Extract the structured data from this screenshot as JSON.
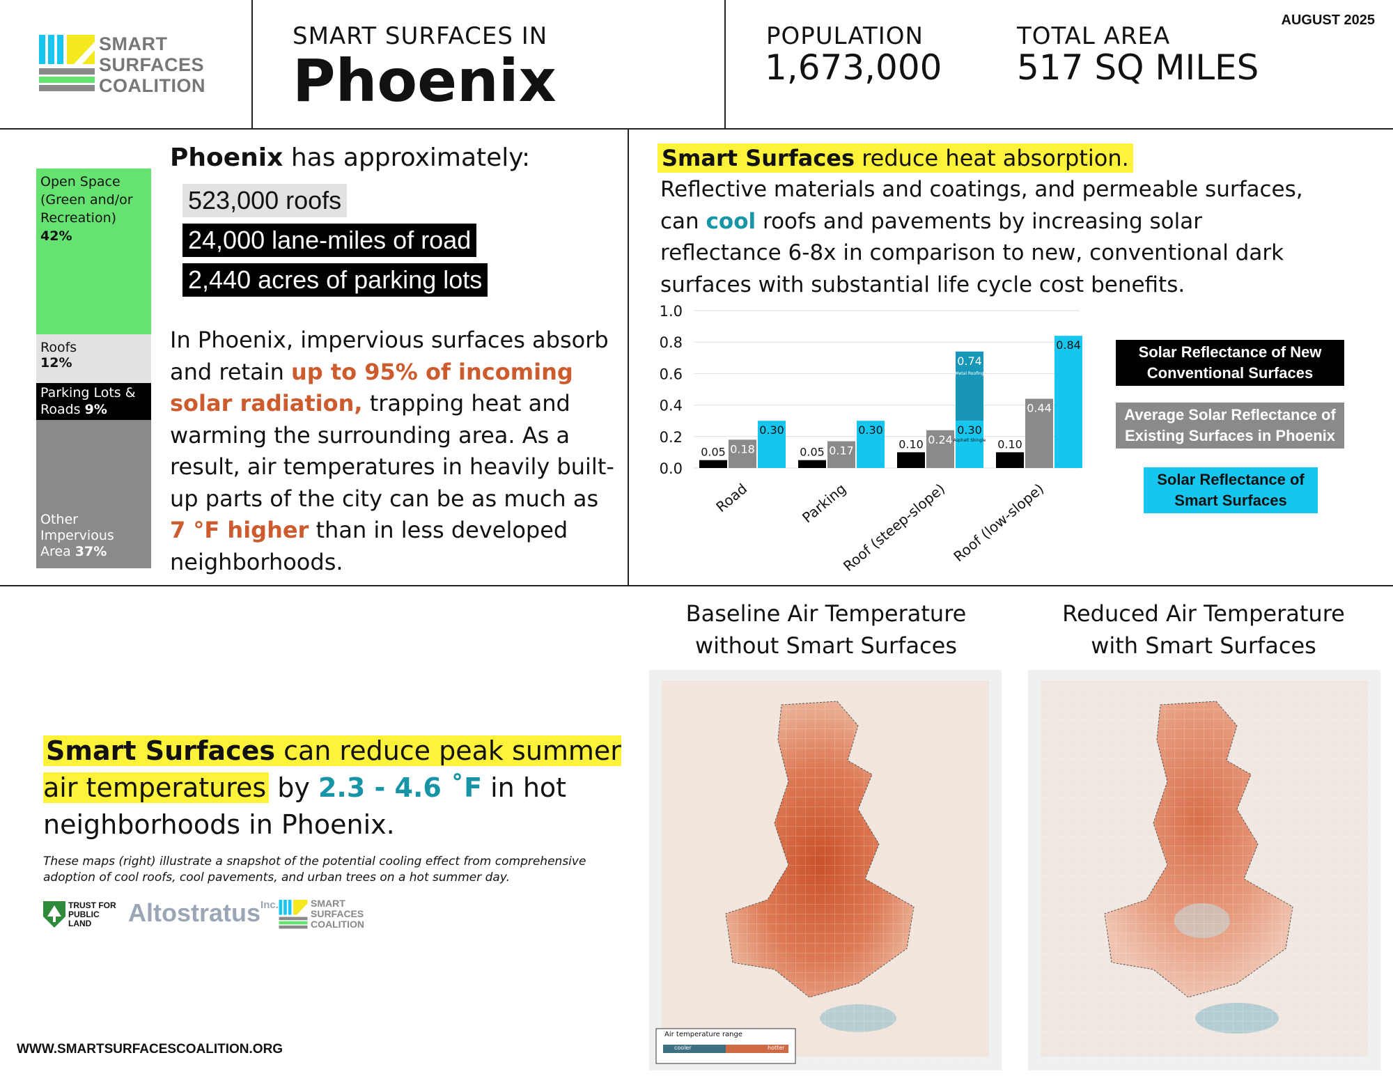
{
  "header": {
    "logo_lines": [
      "SMART",
      "SURFACES",
      "COALITION"
    ],
    "subtitle": "SMART SURFACES IN",
    "city": "Phoenix",
    "population_label": "POPULATION",
    "population_value": "1,673,000",
    "area_label": "TOTAL AREA",
    "area_value": "517 SQ MILES",
    "date": "AUGUST 2025"
  },
  "land_use": {
    "segments": [
      {
        "label": "Open Space (Green and/or Recreation)",
        "pct": "42%",
        "value": 42,
        "color": "#66e270"
      },
      {
        "label": "Roofs",
        "pct": "12%",
        "value": 12,
        "color": "#e2e2e2"
      },
      {
        "label": "Parking Lots & Roads",
        "pct": "9%",
        "value": 9,
        "color": "#000000"
      },
      {
        "label": "Other Impervious Area",
        "pct": "37%",
        "value": 37,
        "color": "#8a8a8a"
      }
    ]
  },
  "approx": {
    "city": "Phoenix",
    "lead": "has approximately:",
    "items": [
      "523,000 roofs",
      "24,000 lane-miles of road",
      "2,440 acres of parking lots"
    ]
  },
  "impervious_text": {
    "p1": "In Phoenix, impervious surfaces absorb and retain ",
    "h1": "up to 95% of incoming solar radiation,",
    "p2": " trapping heat and warming the surrounding area. As a result, air temperatures in heavily built-up parts of the city can be as much as ",
    "h2": "7 °F higher",
    "p3": " than in less developed neighborhoods."
  },
  "reflect": {
    "head_bold": "Smart Surfaces",
    "head_rest": " reduce heat absorption.",
    "p1": "Reflective materials and coatings, and permeable surfaces, can ",
    "cool": "cool",
    "p2": " roofs and pavements by increasing solar reflectance 6-8x in comparison to new, conventional dark surfaces with substantial life cycle cost benefits."
  },
  "chart_data": {
    "type": "bar",
    "categories": [
      "Road",
      "Parking",
      "Roof (steep-slope)",
      "Roof (low-slope)"
    ],
    "series": [
      {
        "name": "Solar Reflectance of New Conventional Surfaces",
        "color": "#000000",
        "values": [
          0.05,
          0.05,
          0.1,
          0.1
        ]
      },
      {
        "name": "Average Solar Reflectance of Existing Surfaces in Phoenix",
        "color": "#8a8a8a",
        "values": [
          0.18,
          0.17,
          0.24,
          0.44
        ]
      },
      {
        "name": "Solar Reflectance of Smart Surfaces",
        "color": "#17c6ee",
        "values": [
          0.3,
          0.3,
          0.3,
          0.84
        ]
      }
    ],
    "stacked_extra": {
      "category": "Roof (steep-slope)",
      "value": 0.74,
      "label": "0.74",
      "sub": "Metal Roofing",
      "base_sub": "Asphalt Shingle",
      "color": "#1796b8"
    },
    "yticks": [
      "0.0",
      "0.2",
      "0.4",
      "0.6",
      "0.8",
      "1.0"
    ],
    "ylim": [
      0,
      1.0
    ],
    "grid": true,
    "legend_position": "right"
  },
  "bottom": {
    "claim_bold": "Smart Surfaces",
    "claim_hl": " can reduce peak summer air temperatures",
    "claim_by": " by ",
    "claim_val": "2.3 - 4.6 ˚F",
    "claim_rest": " in hot neighborhoods in Phoenix.",
    "caption": "These maps (right) illustrate a snapshot of the potential cooling effect from comprehensive adoption of cool roofs, cool pavements, and urban trees on a hot summer day.",
    "partner_tpl": [
      "TRUST FOR",
      "PUBLIC",
      "LAND"
    ],
    "partner_alto": "Altostratus",
    "partner_alto_inc": "Inc.",
    "partner_ssc": [
      "SMART",
      "SURFACES",
      "COALITION"
    ],
    "url": "WWW.SMARTSURFACESCOALITION.ORG"
  },
  "maps": {
    "left_title": [
      "Baseline Air Temperature",
      "without Smart Surfaces"
    ],
    "right_title": [
      "Reduced Air Temperature",
      "with Smart Surfaces"
    ],
    "legend_title": "Air temperature range",
    "legend_cooler": "cooler",
    "legend_hotter": "hotter"
  }
}
